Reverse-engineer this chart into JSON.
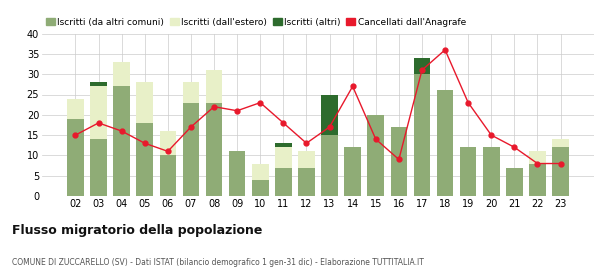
{
  "years": [
    "02",
    "03",
    "04",
    "05",
    "06",
    "07",
    "08",
    "09",
    "10",
    "11",
    "12",
    "13",
    "14",
    "15",
    "16",
    "17",
    "18",
    "19",
    "20",
    "21",
    "22",
    "23"
  ],
  "iscritti_altri_comuni": [
    19,
    14,
    27,
    18,
    10,
    23,
    23,
    11,
    4,
    7,
    7,
    15,
    12,
    20,
    17,
    30,
    26,
    12,
    12,
    7,
    8,
    12
  ],
  "iscritti_estero": [
    5,
    13,
    6,
    10,
    6,
    5,
    8,
    0,
    4,
    5,
    4,
    0,
    0,
    0,
    0,
    0,
    0,
    0,
    0,
    0,
    3,
    2
  ],
  "iscritti_altri": [
    0,
    1,
    0,
    0,
    0,
    0,
    0,
    0,
    0,
    1,
    0,
    10,
    0,
    0,
    0,
    4,
    0,
    0,
    0,
    0,
    0,
    0
  ],
  "cancellati": [
    15,
    18,
    16,
    13,
    11,
    17,
    22,
    21,
    23,
    18,
    13,
    17,
    27,
    14,
    9,
    31,
    36,
    23,
    15,
    12,
    8,
    8
  ],
  "color_altri_comuni": "#8fac76",
  "color_estero": "#e8f0c8",
  "color_altri": "#2d6b2d",
  "color_cancellati": "#e8192c",
  "title": "Flusso migratorio della popolazione",
  "subtitle": "COMUNE DI ZUCCARELLO (SV) - Dati ISTAT (bilancio demografico 1 gen-31 dic) - Elaborazione TUTTITALIA.IT",
  "legend_labels": [
    "Iscritti (da altri comuni)",
    "Iscritti (dall'estero)",
    "Iscritti (altri)",
    "Cancellati dall'Anagrafe"
  ],
  "ylim": [
    0,
    40
  ],
  "yticks": [
    0,
    5,
    10,
    15,
    20,
    25,
    30,
    35,
    40
  ]
}
